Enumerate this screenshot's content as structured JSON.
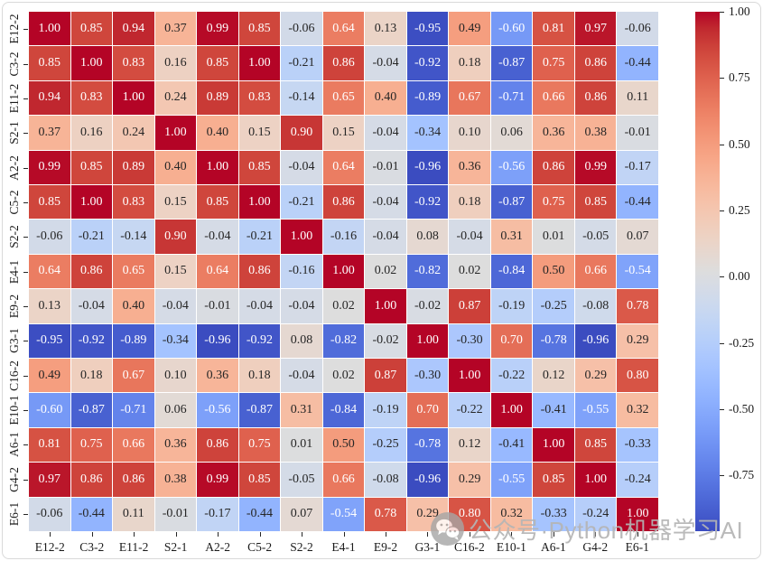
{
  "chart_data": {
    "type": "heatmap",
    "title": "",
    "xlabel": "",
    "ylabel": "",
    "categories": [
      "E12-2",
      "C3-2",
      "E11-2",
      "S2-1",
      "A2-2",
      "C5-2",
      "S2-2",
      "E4-1",
      "E9-2",
      "G3-1",
      "C16-2",
      "E10-1",
      "A6-1",
      "G4-2",
      "E6-1"
    ],
    "matrix": [
      [
        1.0,
        0.85,
        0.94,
        0.37,
        0.99,
        0.85,
        -0.06,
        0.64,
        0.13,
        -0.95,
        0.49,
        -0.6,
        0.81,
        0.97,
        -0.06
      ],
      [
        0.85,
        1.0,
        0.83,
        0.16,
        0.85,
        1.0,
        -0.21,
        0.86,
        -0.04,
        -0.92,
        0.18,
        -0.87,
        0.75,
        0.86,
        -0.44
      ],
      [
        0.94,
        0.83,
        1.0,
        0.24,
        0.89,
        0.83,
        -0.14,
        0.65,
        0.4,
        -0.89,
        0.67,
        -0.71,
        0.66,
        0.86,
        0.11
      ],
      [
        0.37,
        0.16,
        0.24,
        1.0,
        0.4,
        0.15,
        0.9,
        0.15,
        -0.04,
        -0.34,
        0.1,
        0.06,
        0.36,
        0.38,
        -0.01
      ],
      [
        0.99,
        0.85,
        0.89,
        0.4,
        1.0,
        0.85,
        -0.04,
        0.64,
        -0.01,
        -0.96,
        0.36,
        -0.56,
        0.86,
        0.99,
        -0.17
      ],
      [
        0.85,
        1.0,
        0.83,
        0.15,
        0.85,
        1.0,
        -0.21,
        0.86,
        -0.04,
        -0.92,
        0.18,
        -0.87,
        0.75,
        0.85,
        -0.44
      ],
      [
        -0.06,
        -0.21,
        -0.14,
        0.9,
        -0.04,
        -0.21,
        1.0,
        -0.16,
        -0.04,
        0.08,
        -0.04,
        0.31,
        0.01,
        -0.05,
        0.07
      ],
      [
        0.64,
        0.86,
        0.65,
        0.15,
        0.64,
        0.86,
        -0.16,
        1.0,
        0.02,
        -0.82,
        0.02,
        -0.84,
        0.5,
        0.66,
        -0.54
      ],
      [
        0.13,
        -0.04,
        0.4,
        -0.04,
        -0.01,
        -0.04,
        -0.04,
        0.02,
        1.0,
        -0.02,
        0.87,
        -0.19,
        -0.25,
        -0.08,
        0.78
      ],
      [
        -0.95,
        -0.92,
        -0.89,
        -0.34,
        -0.96,
        -0.92,
        0.08,
        -0.82,
        -0.02,
        1.0,
        -0.3,
        0.7,
        -0.78,
        -0.96,
        0.29
      ],
      [
        0.49,
        0.18,
        0.67,
        0.1,
        0.36,
        0.18,
        -0.04,
        0.02,
        0.87,
        -0.3,
        1.0,
        -0.22,
        0.12,
        0.29,
        0.8
      ],
      [
        -0.6,
        -0.87,
        -0.71,
        0.06,
        -0.56,
        -0.87,
        0.31,
        -0.84,
        -0.19,
        0.7,
        -0.22,
        1.0,
        -0.41,
        -0.55,
        0.32
      ],
      [
        0.81,
        0.75,
        0.66,
        0.36,
        0.86,
        0.75,
        0.01,
        0.5,
        -0.25,
        -0.78,
        0.12,
        -0.41,
        1.0,
        0.85,
        -0.33
      ],
      [
        0.97,
        0.86,
        0.86,
        0.38,
        0.99,
        0.85,
        -0.05,
        0.66,
        -0.08,
        -0.96,
        0.29,
        -0.55,
        0.85,
        1.0,
        -0.24
      ],
      [
        -0.06,
        -0.44,
        0.11,
        -0.01,
        -0.17,
        -0.44,
        0.07,
        -0.54,
        0.78,
        0.29,
        0.8,
        0.32,
        -0.33,
        -0.24,
        1.0
      ]
    ],
    "vmin": -0.96,
    "vmax": 1.0,
    "colormap": "coolwarm",
    "annotation_decimals": 2,
    "grid": "1px white separators between cells",
    "legend_position": "none",
    "colorbar": {
      "position": "right",
      "ticks": [
        {
          "label": "1.00",
          "value": 1.0
        },
        {
          "label": "0.75",
          "value": 0.75
        },
        {
          "label": "0.50",
          "value": 0.5
        },
        {
          "label": "0.25",
          "value": 0.25
        },
        {
          "label": "0.00",
          "value": 0.0
        },
        {
          "label": "-0.25",
          "value": -0.25
        },
        {
          "label": "-0.50",
          "value": -0.5
        },
        {
          "label": "-0.75",
          "value": -0.75
        }
      ]
    }
  },
  "colors": {
    "heat_max_red": "#b40426",
    "heat_mid_gray": "#dddddd",
    "heat_min_blue": "#3b4cc0",
    "annotation_dark": "#262626",
    "annotation_light": "#ffffff",
    "axis_text": "#1a1a1a",
    "watermark_gray": "#b5b5b5"
  },
  "watermark": {
    "icon": "wechat-icon",
    "text": "公众号·Python机器学习AI"
  }
}
